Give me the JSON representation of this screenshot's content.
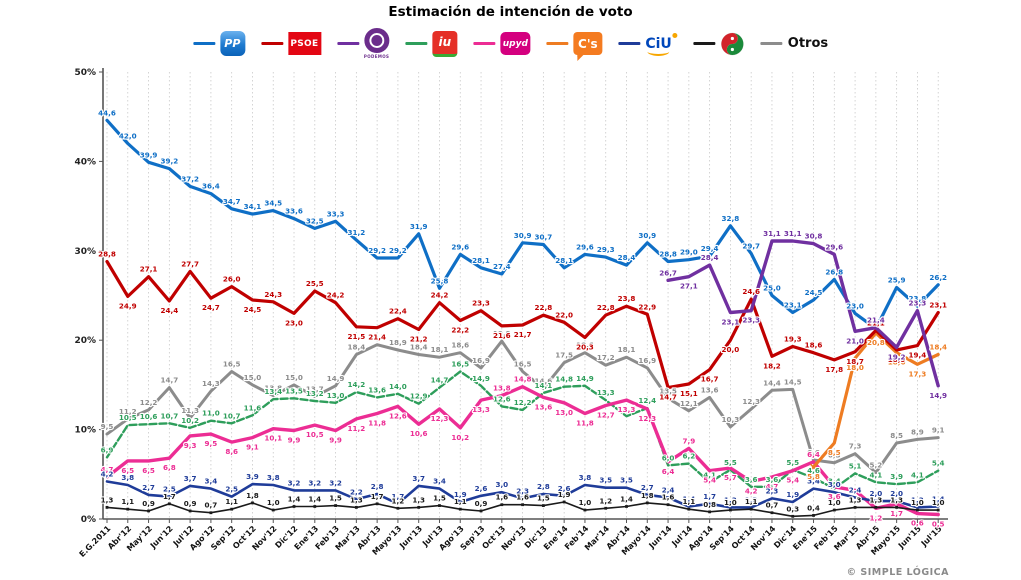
{
  "header": {
    "title": "Estimación de intención de voto"
  },
  "legend": {
    "items": [
      {
        "id": "pp",
        "label": "PP"
      },
      {
        "id": "psoe",
        "label": "PSOE"
      },
      {
        "id": "podemos",
        "label": "PODEMOS"
      },
      {
        "id": "iu",
        "label": "iu"
      },
      {
        "id": "upyd",
        "label": "upyd"
      },
      {
        "id": "cs",
        "label": "C's"
      },
      {
        "id": "ciu",
        "label": "CiU"
      },
      {
        "id": "pnv",
        "label": ""
      },
      {
        "id": "otros",
        "label": "Otros"
      }
    ]
  },
  "chart_data": {
    "type": "line",
    "title": "Estimación de intención de voto",
    "xlabel": "",
    "ylabel": "",
    "ylim": [
      0,
      50
    ],
    "y_ticks": [
      "0%",
      "10%",
      "20%",
      "30%",
      "40%",
      "50%"
    ],
    "grid": "vertical-dotted",
    "legend_position": "top",
    "x_categories": [
      "E.G.2011",
      "Abr'12",
      "May'12",
      "Jun'12",
      "Jul'12",
      "Ago'12",
      "Sep'12",
      "Oct'12",
      "Nov'12",
      "Dic'12",
      "Ene'13",
      "Feb'13",
      "Mar'13",
      "Abr'13",
      "Mayo'13",
      "Jun'13",
      "Jul'13",
      "Ago'13",
      "Sep'13",
      "Oct'13",
      "Nov'13",
      "Dic'13",
      "Ene'14",
      "Feb'14",
      "Mar'14",
      "Abr'14",
      "Mayo'14",
      "Jun'14",
      "Jul'14",
      "Ago'14",
      "Sep'14",
      "Oct'14",
      "Nov'14",
      "Dic'14",
      "Ene'15",
      "Feb'15",
      "Mar'15",
      "Abr'15",
      "Mayo'15",
      "Jun'15",
      "Jul'15"
    ],
    "series": [
      {
        "id": "pp",
        "name": "PP",
        "color": "#0f6fc6",
        "width": 3.2,
        "dash": null,
        "label_side": "above",
        "label_overrides": {},
        "values": [
          44.6,
          42.0,
          39.9,
          39.2,
          37.2,
          36.4,
          34.7,
          34.1,
          34.5,
          33.6,
          32.5,
          33.3,
          31.2,
          29.2,
          29.2,
          31.9,
          25.8,
          29.6,
          28.1,
          27.4,
          30.9,
          30.7,
          28.1,
          29.6,
          29.3,
          28.4,
          30.9,
          28.8,
          29.0,
          29.4,
          32.8,
          29.7,
          25.0,
          23.1,
          24.5,
          26.8,
          23.0,
          21.3,
          25.9,
          23.8,
          26.2
        ]
      },
      {
        "id": "psoe",
        "name": "PSOE",
        "color": "#c00000",
        "width": 3.2,
        "dash": null,
        "label_side": "auto",
        "label_overrides": {},
        "values": [
          28.8,
          24.9,
          27.1,
          24.4,
          27.7,
          24.7,
          26.0,
          24.5,
          24.3,
          23.0,
          25.5,
          24.2,
          21.5,
          21.4,
          22.4,
          21.2,
          24.2,
          22.2,
          23.3,
          21.6,
          21.7,
          22.8,
          22.0,
          20.3,
          22.8,
          23.8,
          22.9,
          14.7,
          15.1,
          16.7,
          20.0,
          24.6,
          18.2,
          19.3,
          18.6,
          17.8,
          18.7,
          21.1,
          18.9,
          19.4,
          23.1
        ]
      },
      {
        "id": "podemos",
        "name": "PODEMOS",
        "color": "#7030a0",
        "width": 3.4,
        "dash": null,
        "label_side": "auto",
        "label_overrides": {
          "40": "below"
        },
        "values": [
          null,
          null,
          null,
          null,
          null,
          null,
          null,
          null,
          null,
          null,
          null,
          null,
          null,
          null,
          null,
          null,
          null,
          null,
          null,
          null,
          null,
          null,
          null,
          null,
          null,
          null,
          null,
          26.7,
          27.1,
          28.4,
          23.1,
          23.3,
          31.1,
          31.1,
          30.8,
          29.6,
          21.0,
          21.4,
          19.2,
          23.3,
          14.9
        ]
      },
      {
        "id": "iu",
        "name": "IU",
        "color": "#2e9e5b",
        "width": 2.4,
        "dash": "7 3",
        "label_side": "above",
        "label_overrides": {},
        "values": [
          6.9,
          10.5,
          10.6,
          10.7,
          10.2,
          11.0,
          10.7,
          11.6,
          13.4,
          13.5,
          13.2,
          13.0,
          14.2,
          13.6,
          14.0,
          12.9,
          14.7,
          16.5,
          14.9,
          12.6,
          12.2,
          14.1,
          14.8,
          14.9,
          13.3,
          11.5,
          12.4,
          6.0,
          6.2,
          4.1,
          5.5,
          3.6,
          3.6,
          5.5,
          4.6,
          3.4,
          5.1,
          4.1,
          3.9,
          4.1,
          5.4
        ]
      },
      {
        "id": "upyd",
        "name": "UPyD",
        "color": "#ec2d94",
        "width": 3.4,
        "dash": null,
        "label_side": "below",
        "label_overrides": {
          "0": "above",
          "19": "above",
          "20": "above",
          "28": "above",
          "34": "above"
        },
        "values": [
          4.7,
          6.5,
          6.5,
          6.8,
          9.3,
          9.5,
          8.6,
          9.1,
          10.1,
          9.9,
          10.5,
          9.9,
          11.2,
          11.8,
          12.6,
          10.6,
          12.3,
          10.2,
          13.3,
          13.8,
          14.8,
          13.6,
          13.0,
          11.8,
          12.7,
          13.3,
          12.3,
          6.4,
          7.9,
          5.4,
          5.7,
          4.2,
          4.7,
          5.4,
          6.4,
          3.6,
          3.2,
          1.2,
          1.7,
          0.6,
          0.5
        ]
      },
      {
        "id": "cs",
        "name": "C's",
        "color": "#ee7c22",
        "width": 3.2,
        "dash": null,
        "label_side": "below",
        "label_overrides": {
          "40": "above"
        },
        "values": [
          null,
          null,
          null,
          null,
          null,
          null,
          null,
          null,
          null,
          null,
          null,
          null,
          null,
          null,
          null,
          null,
          null,
          null,
          null,
          null,
          null,
          null,
          null,
          null,
          null,
          null,
          null,
          null,
          null,
          null,
          null,
          null,
          null,
          null,
          5.8,
          8.5,
          18.0,
          20.8,
          18.6,
          17.3,
          18.4
        ]
      },
      {
        "id": "ciu",
        "name": "CiU",
        "color": "#1f3c99",
        "width": 2.6,
        "dash": null,
        "label_side": "above",
        "label_overrides": {},
        "values": [
          4.2,
          3.8,
          2.7,
          2.5,
          3.7,
          3.4,
          2.5,
          3.9,
          3.8,
          3.2,
          3.2,
          3.2,
          2.2,
          2.8,
          1.7,
          3.7,
          3.4,
          1.9,
          2.6,
          3.0,
          2.3,
          2.8,
          2.6,
          3.8,
          3.5,
          3.5,
          2.7,
          2.4,
          1.4,
          1.7,
          1.3,
          1.3,
          2.3,
          1.9,
          3.4,
          3.0,
          2.4,
          2.0,
          2.0,
          1.3,
          1.4
        ]
      },
      {
        "id": "pnv",
        "name": "PNV",
        "color": "#1a1a1a",
        "width": 1.6,
        "dash": null,
        "label_side": "above",
        "label_overrides": {},
        "values": [
          1.3,
          1.1,
          0.9,
          1.7,
          0.9,
          0.7,
          1.1,
          1.8,
          1.0,
          1.4,
          1.4,
          1.5,
          1.3,
          1.7,
          1.2,
          1.3,
          1.5,
          1.1,
          0.9,
          1.6,
          1.6,
          1.5,
          1.9,
          1.0,
          1.2,
          1.4,
          1.8,
          1.6,
          1.1,
          0.8,
          1.0,
          1.1,
          0.7,
          0.3,
          0.4,
          1.0,
          1.3,
          1.3,
          1.3,
          1.0,
          1.0
        ]
      },
      {
        "id": "otros",
        "name": "Otros",
        "color": "#8c8c8c",
        "width": 3.0,
        "dash": null,
        "label_side": "above",
        "label_overrides": {},
        "values": [
          9.5,
          11.2,
          12.2,
          14.7,
          11.3,
          14.3,
          16.5,
          15.0,
          13.8,
          15.0,
          13.7,
          14.9,
          18.4,
          19.5,
          18.9,
          18.4,
          18.1,
          18.6,
          16.9,
          19.9,
          16.5,
          14.6,
          17.5,
          18.6,
          17.2,
          18.1,
          16.9,
          13.5,
          12.1,
          13.6,
          10.3,
          12.3,
          14.4,
          14.5,
          6.6,
          6.3,
          7.3,
          5.2,
          8.5,
          8.9,
          9.1
        ]
      }
    ]
  },
  "footer": {
    "credit": "© SIMPLE LÓGICA"
  }
}
